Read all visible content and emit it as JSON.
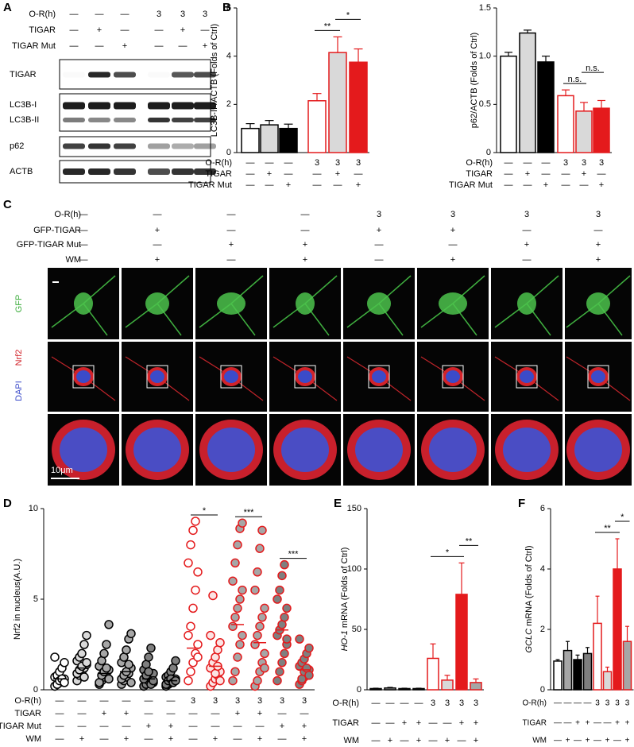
{
  "panel_labels": [
    "A",
    "B",
    "C",
    "D",
    "E",
    "F"
  ],
  "blot": {
    "conditions": {
      "labels": [
        "O-R(h)",
        "TIGAR",
        "TIGAR Mut"
      ],
      "rows": [
        [
          "—",
          "—",
          "—",
          "3",
          "3",
          "3"
        ],
        [
          "—",
          "+",
          "—",
          "—",
          "+",
          "—"
        ],
        [
          "—",
          "—",
          "+",
          "—",
          "—",
          "+"
        ]
      ]
    },
    "bands": [
      "TIGAR",
      "LC3B-I",
      "LC3B-II",
      "p62",
      "ACTB"
    ]
  },
  "imaging": {
    "conditions": {
      "labels": [
        "O-R(h)",
        "GFP-TIGAR",
        "GFP-TIGAR Mut",
        "WM"
      ],
      "rows": [
        [
          "—",
          "—",
          "—",
          "—",
          "3",
          "3",
          "3",
          "3"
        ],
        [
          "—",
          "+",
          "—",
          "—",
          "+",
          "+",
          "—",
          "—"
        ],
        [
          "—",
          "—",
          "+",
          "+",
          "—",
          "—",
          "+",
          "+"
        ],
        [
          "—",
          "+",
          "—",
          "+",
          "—",
          "+",
          "—",
          "+"
        ]
      ]
    },
    "channels": [
      "GFP",
      "Nrf2",
      "DAPI"
    ],
    "scale_bar": "10μm"
  },
  "chart_data": [
    {
      "type": "bar",
      "ylabel": "LC3B-II /ACTB (Folds of Ctrl)",
      "ylim": [
        0,
        6
      ],
      "yticks": [
        0,
        2,
        4,
        6
      ],
      "values": [
        1.0,
        1.15,
        1.0,
        2.15,
        4.15,
        3.75
      ],
      "errors": [
        0.2,
        0.18,
        0.18,
        0.3,
        0.65,
        0.55
      ],
      "colors": [
        "#ffffff",
        "#d9d9d9",
        "#000000",
        "#ffffff",
        "#d9d9d9",
        "#e41a1c"
      ],
      "edge_colors": [
        "#000000",
        "#000000",
        "#000000",
        "#e41a1c",
        "#e41a1c",
        "#e41a1c"
      ],
      "annotations": [
        {
          "text": "**",
          "between": [
            3,
            4
          ]
        },
        {
          "text": "*",
          "between": [
            4,
            5
          ]
        }
      ],
      "conditions": {
        "labels": [
          "O-R(h)",
          "TIGAR",
          "TIGAR Mut"
        ],
        "rows": [
          [
            "—",
            "—",
            "—",
            "3",
            "3",
            "3"
          ],
          [
            "—",
            "+",
            "—",
            "—",
            "+",
            "—"
          ],
          [
            "—",
            "—",
            "+",
            "—",
            "—",
            "+"
          ]
        ]
      }
    },
    {
      "type": "bar",
      "ylabel": "p62/ACTB (Folds of Ctrl)",
      "ylim": [
        0,
        1.5
      ],
      "yticks": [
        0,
        0.5,
        {
          "value": 1,
          "label": "1.0"
        },
        1.5
      ],
      "values": [
        1.0,
        1.24,
        0.94,
        0.59,
        0.43,
        0.46
      ],
      "errors": [
        0.04,
        0.03,
        0.06,
        0.06,
        0.09,
        0.08
      ],
      "colors": [
        "#ffffff",
        "#d9d9d9",
        "#000000",
        "#ffffff",
        "#d9d9d9",
        "#e41a1c"
      ],
      "edge_colors": [
        "#000000",
        "#000000",
        "#000000",
        "#e41a1c",
        "#e41a1c",
        "#e41a1c"
      ],
      "annotations": [
        {
          "text": "n.s.",
          "between": [
            3,
            4
          ]
        },
        {
          "text": "n.s.",
          "between": [
            4,
            5
          ]
        }
      ],
      "conditions": {
        "labels": [
          "O-R(h)",
          "TIGAR",
          "TIGAR Mut"
        ],
        "rows": [
          [
            "—",
            "—",
            "—",
            "3",
            "3",
            "3"
          ],
          [
            "—",
            "+",
            "—",
            "—",
            "+",
            "—"
          ],
          [
            "—",
            "—",
            "+",
            "—",
            "—",
            "+"
          ]
        ]
      }
    },
    {
      "type": "strip",
      "ylabel": "Nrf2 in nucleus(A.U.)",
      "ylim": [
        0,
        10
      ],
      "yticks": [
        0,
        5,
        10
      ],
      "groups": [
        {
          "values": [
            0.2,
            0.3,
            0.4,
            0.5,
            0.6,
            0.7,
            0.8,
            1.0,
            1.2,
            1.5,
            1.8,
            0.3,
            0.5,
            0.6,
            0.4
          ],
          "mean": 0.6,
          "color": "#ffffff",
          "edge_color": "#000000"
        },
        {
          "values": [
            0.5,
            0.8,
            1.0,
            1.2,
            1.4,
            1.6,
            1.8,
            2.0,
            2.5,
            3.0,
            0.9,
            1.1,
            1.3,
            0.7,
            1.5
          ],
          "mean": 1.2,
          "color": "#d9d9d9",
          "edge_color": "#000000"
        },
        {
          "values": [
            0.3,
            0.5,
            0.7,
            0.9,
            1.1,
            1.3,
            1.6,
            2.0,
            2.5,
            3.6,
            0.4,
            0.8,
            1.0,
            1.2,
            0.6
          ],
          "mean": 0.9,
          "color": "#a6a6a6",
          "edge_color": "#000000"
        },
        {
          "values": [
            0.3,
            0.5,
            0.7,
            0.9,
            1.2,
            1.5,
            1.8,
            2.2,
            2.8,
            3.1,
            0.6,
            0.8,
            1.0,
            1.4,
            0.4
          ],
          "mean": 1.0,
          "color": "#a6a6a6",
          "edge_color": "#000000"
        },
        {
          "values": [
            0.2,
            0.3,
            0.5,
            0.7,
            0.9,
            1.1,
            1.4,
            1.8,
            2.3,
            0.4,
            0.6,
            0.8,
            1.0,
            0.3,
            0.5
          ],
          "mean": 0.6,
          "color": "#7f7f7f",
          "edge_color": "#000000"
        },
        {
          "values": [
            0.2,
            0.3,
            0.4,
            0.5,
            0.6,
            0.7,
            0.8,
            1.0,
            1.2,
            1.6,
            0.3,
            0.5,
            0.6,
            0.4,
            0.5
          ],
          "mean": 0.5,
          "color": "#7f7f7f",
          "edge_color": "#000000"
        },
        {
          "values": [
            0.5,
            1.0,
            1.5,
            2.0,
            2.5,
            3.0,
            3.5,
            4.5,
            5.5,
            6.5,
            7.0,
            8.0,
            8.8,
            9.3,
            1.8
          ],
          "mean": 2.3,
          "color": "#ffffff",
          "edge_color": "#e41a1c"
        },
        {
          "values": [
            0.2,
            0.4,
            0.6,
            0.8,
            1.0,
            1.2,
            1.5,
            1.8,
            2.2,
            2.6,
            3.0,
            5.2,
            0.9,
            1.3,
            0.5
          ],
          "mean": 1.3,
          "color": "#fbe3e3",
          "edge_color": "#e41a1c"
        },
        {
          "values": [
            0.5,
            1.0,
            1.8,
            2.5,
            3.0,
            3.5,
            4.0,
            4.5,
            5.0,
            5.5,
            6.0,
            7.0,
            8.0,
            8.9,
            9.2
          ],
          "mean": 3.6,
          "color": "#a6a6a6",
          "edge_color": "#e41a1c"
        },
        {
          "values": [
            0.2,
            0.5,
            1.0,
            1.5,
            2.0,
            2.5,
            3.0,
            3.5,
            4.0,
            4.5,
            5.5,
            6.5,
            7.8,
            8.8,
            1.2
          ],
          "mean": 2.6,
          "color": "#a6a6a6",
          "edge_color": "#e41a1c"
        },
        {
          "values": [
            0.5,
            1.0,
            1.5,
            2.0,
            2.5,
            3.0,
            3.3,
            3.6,
            4.0,
            4.5,
            5.0,
            5.5,
            6.3,
            6.9,
            2.8
          ],
          "mean": 3.3,
          "color": "#7f7f7f",
          "edge_color": "#e41a1c"
        },
        {
          "values": [
            0.3,
            0.5,
            0.7,
            0.9,
            1.1,
            1.3,
            1.5,
            1.7,
            2.0,
            2.3,
            2.8,
            0.6,
            1.0,
            1.2,
            0.8
          ],
          "mean": 1.1,
          "color": "#7f7f7f",
          "edge_color": "#e41a1c"
        }
      ],
      "annotations": [
        {
          "text": "*",
          "between": [
            6,
            7
          ]
        },
        {
          "text": "***",
          "between": [
            8,
            9
          ]
        },
        {
          "text": "***",
          "between": [
            10,
            11
          ]
        }
      ],
      "conditions": {
        "labels": [
          "O-R(h)",
          "TIGAR",
          "TIGAR Mut",
          "WM"
        ],
        "rows": [
          [
            "—",
            "—",
            "—",
            "—",
            "—",
            "—",
            "3",
            "3",
            "3",
            "3",
            "3",
            "3"
          ],
          [
            "—",
            "—",
            "+",
            "+",
            "—",
            "—",
            "—",
            "—",
            "+",
            "+",
            "—",
            "—"
          ],
          [
            "—",
            "—",
            "—",
            "—",
            "+",
            "+",
            "—",
            "—",
            "—",
            "—",
            "+",
            "+"
          ],
          [
            "—",
            "+",
            "—",
            "+",
            "—",
            "+",
            "—",
            "+",
            "—",
            "+",
            "—",
            "+"
          ]
        ]
      }
    },
    {
      "type": "bar",
      "ylabel_gene": "HO-1",
      "ylabel": "mRNA (Folds of Ctrl)",
      "ylim": [
        0,
        150
      ],
      "yticks": [
        0,
        50,
        100,
        150
      ],
      "values": [
        1,
        1.5,
        1,
        1,
        26,
        8,
        79,
        6
      ],
      "errors": [
        0.3,
        0.5,
        0.3,
        0.3,
        12,
        4,
        26,
        3
      ],
      "colors": [
        "#ffffff",
        "#a6a6a6",
        "#000000",
        "#7f7f7f",
        "#ffffff",
        "#d9d9d9",
        "#e41a1c",
        "#a6a6a6"
      ],
      "edge_colors": [
        "#000000",
        "#000000",
        "#000000",
        "#000000",
        "#e41a1c",
        "#e41a1c",
        "#e41a1c",
        "#e41a1c"
      ],
      "annotations": [
        {
          "text": "*",
          "between": [
            4,
            6
          ]
        },
        {
          "text": "**",
          "between": [
            6,
            7
          ]
        }
      ],
      "conditions": {
        "labels": [
          "O-R(h)",
          "TIGAR",
          "WM"
        ],
        "rows": [
          [
            "—",
            "—",
            "—",
            "—",
            "3",
            "3",
            "3",
            "3"
          ],
          [
            "—",
            "—",
            "+",
            "+",
            "—",
            "—",
            "+",
            "+"
          ],
          [
            "—",
            "+",
            "—",
            "+",
            "—",
            "+",
            "—",
            "+"
          ]
        ]
      }
    },
    {
      "type": "bar",
      "ylabel_gene": "GCLC",
      "ylabel": "mRNA (Folds of Ctrl)",
      "ylim": [
        0,
        6
      ],
      "yticks": [
        0,
        2,
        4,
        6
      ],
      "values": [
        0.95,
        1.3,
        1.0,
        1.2,
        2.2,
        0.6,
        4.0,
        1.6
      ],
      "errors": [
        0.05,
        0.3,
        0.15,
        0.2,
        0.9,
        0.15,
        1.0,
        0.5
      ],
      "colors": [
        "#ffffff",
        "#a6a6a6",
        "#000000",
        "#7f7f7f",
        "#ffffff",
        "#d9d9d9",
        "#e41a1c",
        "#a6a6a6"
      ],
      "edge_colors": [
        "#000000",
        "#000000",
        "#000000",
        "#000000",
        "#e41a1c",
        "#e41a1c",
        "#e41a1c",
        "#e41a1c"
      ],
      "annotations": [
        {
          "text": "**",
          "between": [
            4,
            6
          ]
        },
        {
          "text": "*",
          "between": [
            6,
            7
          ]
        }
      ],
      "conditions": {
        "labels": [
          "O-R(h)",
          "TIGAR",
          "WM"
        ],
        "rows": [
          [
            "—",
            "—",
            "—",
            "—",
            "3",
            "3",
            "3",
            "3"
          ],
          [
            "—",
            "—",
            "+",
            "+",
            "—",
            "—",
            "+",
            "+"
          ],
          [
            "—",
            "+",
            "—",
            "+",
            "—",
            "+",
            "—",
            "+"
          ]
        ]
      }
    }
  ]
}
